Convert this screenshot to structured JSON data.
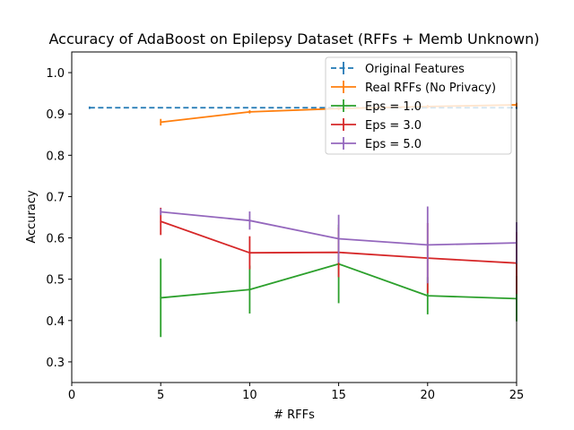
{
  "chart_data": {
    "type": "line",
    "title": "Accuracy of AdaBoost on Epilepsy Dataset (RFFs + Memb Unknown)",
    "xlabel": "# RFFs",
    "ylabel": "Accuracy",
    "xlim": [
      0,
      25
    ],
    "ylim": [
      0.25,
      1.05
    ],
    "xticks": [
      "0",
      "5",
      "10",
      "15",
      "20",
      "25"
    ],
    "yticks": [
      "0.3",
      "0.4",
      "0.5",
      "0.6",
      "0.7",
      "0.8",
      "0.9",
      "1.0"
    ],
    "grid": false,
    "legend_position": "top-right",
    "series": [
      {
        "name": "Original Features",
        "color": "#1f77b4",
        "style": "dashed",
        "x": [
          1,
          25
        ],
        "y": [
          0.915,
          0.915
        ],
        "err": [
          0.003,
          0.003
        ]
      },
      {
        "name": "Real RFFs (No Privacy)",
        "color": "#ff7f0e",
        "style": "solid",
        "x": [
          5,
          10,
          15,
          20,
          25
        ],
        "y": [
          0.88,
          0.905,
          0.913,
          0.918,
          0.922
        ],
        "err": [
          0.008,
          0.004,
          0.004,
          0.004,
          0.005
        ]
      },
      {
        "name": "Eps = 1.0",
        "color": "#2ca02c",
        "style": "solid",
        "x": [
          5,
          10,
          15,
          20,
          25
        ],
        "y": [
          0.455,
          0.475,
          0.537,
          0.46,
          0.453
        ],
        "err": [
          0.095,
          0.058,
          0.095,
          0.045,
          0.055
        ]
      },
      {
        "name": "Eps = 3.0",
        "color": "#d62728",
        "style": "solid",
        "x": [
          5,
          10,
          15,
          20,
          25
        ],
        "y": [
          0.64,
          0.564,
          0.565,
          0.551,
          0.539
        ],
        "err": [
          0.033,
          0.04,
          0.06,
          0.085,
          0.075
        ]
      },
      {
        "name": "Eps = 5.0",
        "color": "#9467bd",
        "style": "solid",
        "x": [
          5,
          10,
          15,
          20,
          25
        ],
        "y": [
          0.663,
          0.642,
          0.598,
          0.583,
          0.588
        ],
        "err": [
          0.008,
          0.022,
          0.058,
          0.093,
          0.05
        ]
      }
    ]
  }
}
